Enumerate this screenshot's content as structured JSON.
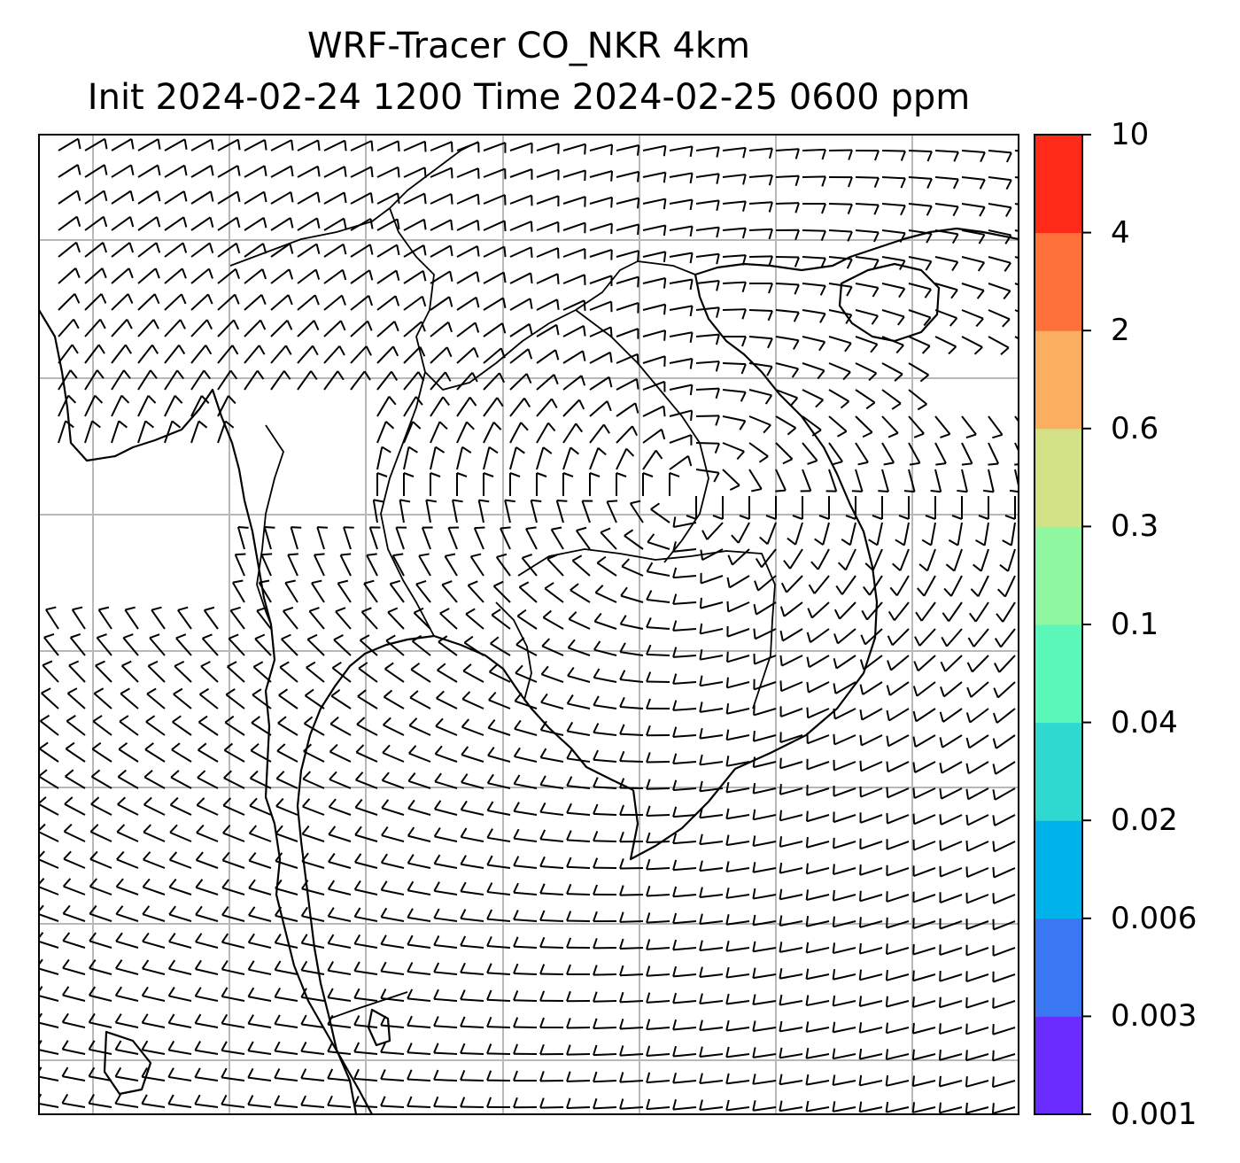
{
  "title": {
    "line1": "WRF-Tracer CO_NKR 4km",
    "line2": "Init 2024-02-24 1200 Time 2024-02-25 0600 ppm"
  },
  "colorbar": {
    "levels": [
      "0.001",
      "0.003",
      "0.006",
      "0.02",
      "0.04",
      "0.1",
      "0.3",
      "0.6",
      "2",
      "4",
      "10"
    ],
    "colors": [
      "#6a2cff",
      "#3a77f2",
      "#00b2ea",
      "#2fd9d0",
      "#5af7b8",
      "#8ef7a0",
      "#d2e186",
      "#fcae60",
      "#ff713b",
      "#ff2a18"
    ]
  },
  "map": {
    "gridlines": true,
    "line_color": "#000000",
    "grid_color": "#b8b8b8"
  }
}
